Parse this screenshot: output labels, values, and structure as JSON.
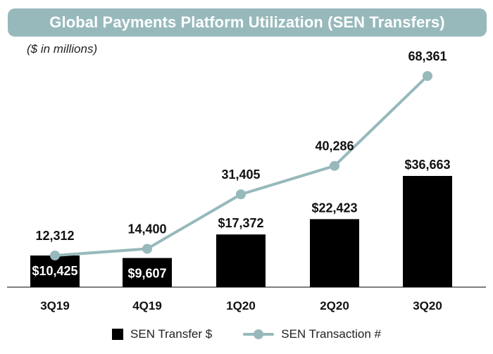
{
  "chart_data": {
    "type": "bar",
    "title": "Global Payments Platform Utilization (SEN Transfers)",
    "subtitle": "($ in millions)",
    "categories": [
      "3Q19",
      "4Q19",
      "1Q20",
      "2Q20",
      "3Q20"
    ],
    "series": [
      {
        "name": "SEN Transfer $",
        "type": "bar",
        "values": [
          10425,
          9607,
          17372,
          22423,
          36663
        ],
        "labels": [
          "$10,425",
          "$9,607",
          "$17,372",
          "$22,423",
          "$36,663"
        ],
        "color": "#000000"
      },
      {
        "name": "SEN Transaction #",
        "type": "line",
        "values": [
          12312,
          14400,
          31405,
          40286,
          68361
        ],
        "labels": [
          "12,312",
          "14,400",
          "31,405",
          "40,286",
          "68,361"
        ],
        "color": "#97b9bc"
      }
    ],
    "legend": [
      "SEN Transfer $",
      "SEN Transaction #"
    ],
    "legend_position": "bottom"
  }
}
